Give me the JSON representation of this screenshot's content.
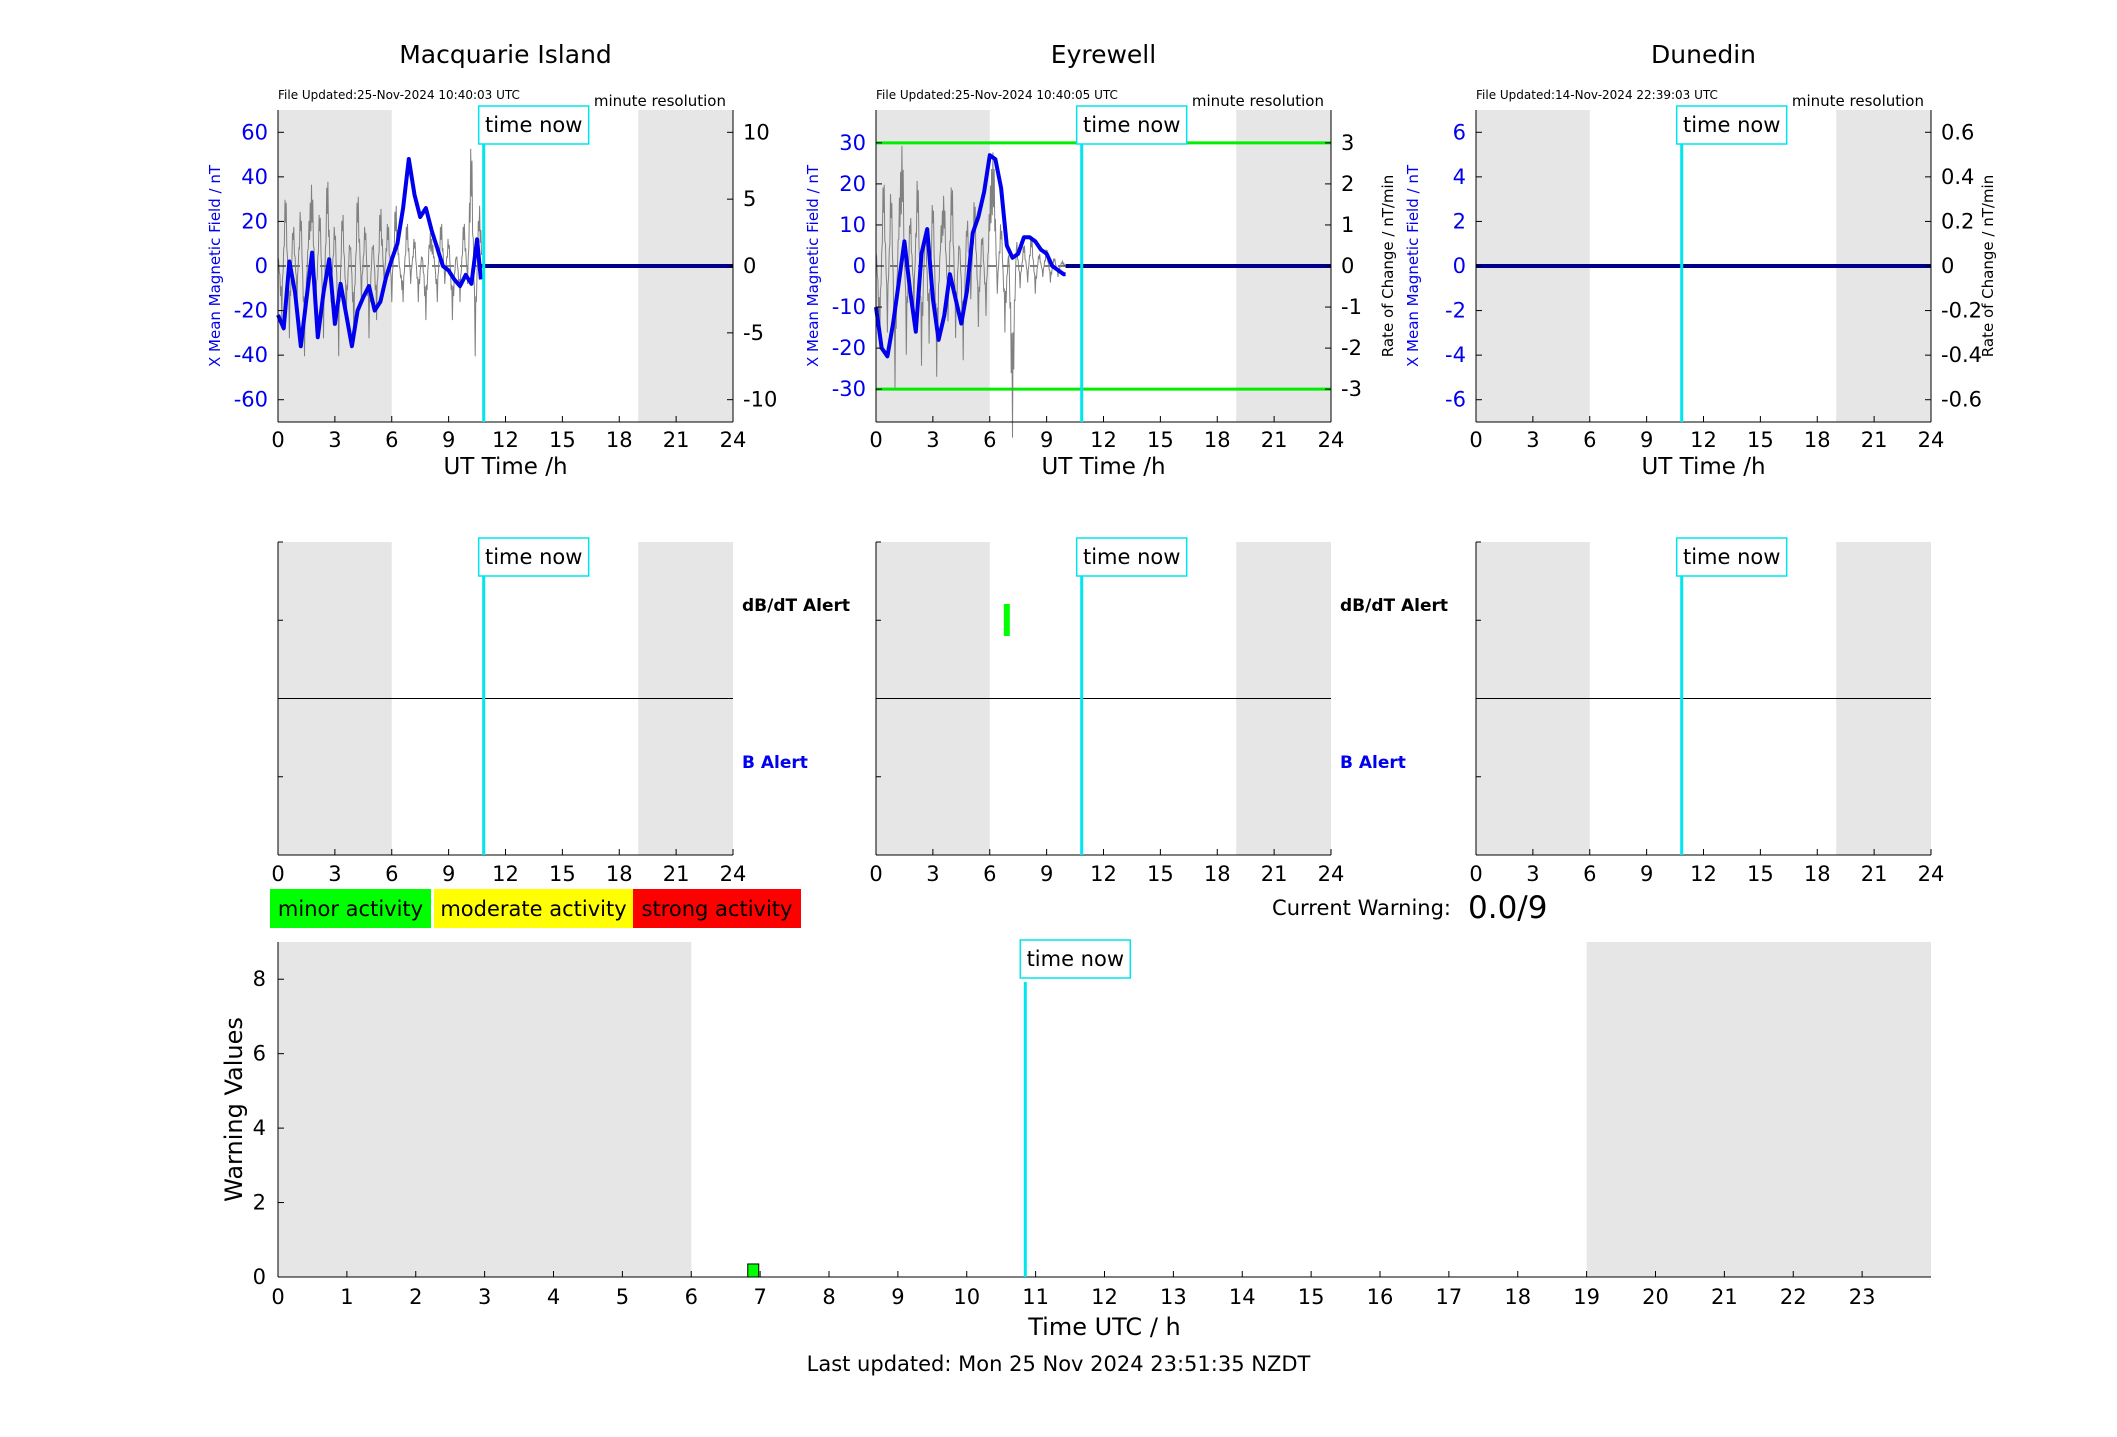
{
  "footer": "Last updated: Mon 25 Nov 2024 23:51:35 NZDT",
  "time_now_label": "time now",
  "time_now_h": 10.85,
  "colors": {
    "night": "#e6e6e6",
    "time_now": "#00e5ee",
    "x_field": "#0000ee",
    "rate": "#808080",
    "threshold": "#00ee00",
    "minor": "#00ff00",
    "moderate": "#ffff00",
    "strong": "#ff0000"
  },
  "stations": [
    {
      "name": "Macquarie Island",
      "file_updated": "File Updated:25-Nov-2024 10:40:03 UTC",
      "resolution": "minute resolution",
      "xlabel": "UT Time /h",
      "y_left_label": "X Mean Magnetic Field / nT",
      "y_right_label": "",
      "ylim_left": [
        -70,
        70
      ],
      "ylim_right": [
        -11.67,
        11.67
      ],
      "yticks_left": [
        -60,
        -40,
        -20,
        0,
        20,
        40,
        60
      ],
      "yticks_left_labels": [
        "-60",
        "-40",
        "-20",
        "0",
        "20",
        "40",
        "60"
      ],
      "yticks_right": [
        -10,
        -5,
        0,
        5,
        10
      ],
      "yticks_right_labels": [
        "-10",
        "-5",
        "0",
        "5",
        "10"
      ],
      "night_ranges": [
        [
          0,
          6
        ],
        [
          19,
          24
        ]
      ],
      "thresholds_left": [],
      "x_field": {
        "t": [
          0,
          0.3,
          0.6,
          0.9,
          1.2,
          1.5,
          1.8,
          2.1,
          2.4,
          2.7,
          3.0,
          3.3,
          3.6,
          3.9,
          4.2,
          4.5,
          4.8,
          5.1,
          5.4,
          5.7,
          6.0,
          6.3,
          6.6,
          6.9,
          7.2,
          7.5,
          7.8,
          8.1,
          8.4,
          8.7,
          9.0,
          9.3,
          9.6,
          9.9,
          10.2,
          10.5,
          10.7
        ],
        "v": [
          -22,
          -28,
          2,
          -12,
          -36,
          -15,
          6,
          -32,
          -12,
          3,
          -26,
          -8,
          -22,
          -36,
          -20,
          -14,
          -9,
          -20,
          -16,
          -5,
          3,
          10,
          26,
          48,
          32,
          22,
          26,
          16,
          8,
          0,
          -2,
          -6,
          -9,
          -4,
          -8,
          12,
          -6
        ]
      },
      "rate": {
        "t": [
          0,
          0.2,
          0.4,
          0.6,
          0.8,
          1.0,
          1.2,
          1.4,
          1.6,
          1.8,
          2.0,
          2.2,
          2.4,
          2.6,
          2.8,
          3.0,
          3.2,
          3.4,
          3.6,
          3.8,
          4.0,
          4.2,
          4.4,
          4.6,
          4.8,
          5.0,
          5.2,
          5.4,
          5.6,
          5.8,
          6.0,
          6.2,
          6.4,
          6.6,
          6.8,
          7.0,
          7.2,
          7.4,
          7.6,
          7.8,
          8.0,
          8.2,
          8.4,
          8.6,
          8.8,
          9.0,
          9.2,
          9.4,
          9.6,
          9.8,
          10.0,
          10.2,
          10.4,
          10.6,
          10.8
        ],
        "v": [
          1,
          -3,
          5,
          -4,
          3,
          -2,
          4,
          -5,
          2,
          5,
          -3,
          4,
          -4,
          6,
          -2,
          3,
          -5,
          4,
          -3,
          2,
          -4,
          5,
          -2,
          3,
          -4,
          2,
          -3,
          4,
          -1,
          3,
          -2,
          4,
          0,
          -2,
          3,
          -1,
          2,
          -2,
          1,
          -3,
          2,
          1,
          -2,
          3,
          -1,
          2,
          -3,
          1,
          -2,
          3,
          -1,
          8,
          -5,
          4,
          0
        ]
      },
      "alerts": []
    },
    {
      "name": "Eyrewell",
      "file_updated": "File Updated:25-Nov-2024 10:40:05 UTC",
      "resolution": "minute resolution",
      "xlabel": "UT Time /h",
      "y_left_label": "X Mean Magnetic Field / nT",
      "y_right_label": "Rate of Change / nT/min",
      "ylim_left": [
        -38,
        38
      ],
      "ylim_right": [
        -3.8,
        3.8
      ],
      "yticks_left": [
        -30,
        -20,
        -10,
        0,
        10,
        20,
        30
      ],
      "yticks_left_labels": [
        "-30",
        "-20",
        "-10",
        "0",
        "10",
        "20",
        "30"
      ],
      "yticks_right": [
        -3,
        -2,
        -1,
        0,
        1,
        2,
        3
      ],
      "yticks_right_labels": [
        "-3",
        "-2",
        "-1",
        "0",
        "1",
        "2",
        "3"
      ],
      "night_ranges": [
        [
          0,
          6
        ],
        [
          19,
          24
        ]
      ],
      "thresholds_left": [
        30,
        -30
      ],
      "x_field": {
        "t": [
          0,
          0.3,
          0.6,
          0.9,
          1.2,
          1.5,
          1.8,
          2.1,
          2.4,
          2.7,
          3.0,
          3.3,
          3.6,
          3.9,
          4.2,
          4.5,
          4.8,
          5.1,
          5.4,
          5.7,
          6.0,
          6.3,
          6.6,
          6.9,
          7.2,
          7.5,
          7.8,
          8.1,
          8.4,
          8.7,
          9.0,
          9.3,
          9.6,
          9.9,
          10.0
        ],
        "v": [
          -10,
          -20,
          -22,
          -14,
          -4,
          6,
          -6,
          -16,
          3,
          9,
          -8,
          -18,
          -12,
          -2,
          -8,
          -14,
          -6,
          8,
          12,
          18,
          27,
          26,
          19,
          5,
          2,
          3,
          7,
          7,
          6,
          4,
          3,
          0,
          -1,
          -2,
          -2
        ]
      },
      "rate": {
        "t": [
          0,
          0.2,
          0.4,
          0.6,
          0.8,
          1.0,
          1.2,
          1.4,
          1.6,
          1.8,
          2.0,
          2.2,
          2.4,
          2.6,
          2.8,
          3.0,
          3.2,
          3.4,
          3.6,
          3.8,
          4.0,
          4.2,
          4.4,
          4.6,
          4.8,
          5.0,
          5.2,
          5.4,
          5.6,
          5.8,
          6.0,
          6.2,
          6.4,
          6.6,
          6.8,
          7.0,
          7.2,
          7.4,
          7.6,
          7.8,
          8.0,
          8.2,
          8.4,
          8.6,
          8.8,
          9.0,
          9.2,
          9.4,
          9.6,
          9.8,
          10.0
        ],
        "v": [
          0.5,
          -1.5,
          2.0,
          -1.2,
          1.8,
          -2.2,
          1.0,
          2.4,
          -1.6,
          1.2,
          -0.8,
          2.0,
          -1.8,
          0.9,
          -1.4,
          1.6,
          -2.0,
          0.6,
          1.4,
          -1.0,
          1.9,
          -1.3,
          0.7,
          -1.7,
          1.1,
          -0.6,
          1.5,
          -1.1,
          0.8,
          -0.9,
          1.3,
          2.2,
          -0.5,
          1.0,
          -1.2,
          0.4,
          -3.1,
          0.6,
          -0.4,
          0.5,
          -0.3,
          0.7,
          -0.5,
          0.3,
          -0.2,
          0.4,
          -0.3,
          0.2,
          -0.2,
          0.1,
          0.0
        ]
      },
      "alerts": [
        {
          "t": 6.9,
          "label": "dB/dT"
        }
      ]
    },
    {
      "name": "Dunedin",
      "file_updated": "File Updated:14-Nov-2024 22:39:03 UTC",
      "resolution": "minute resolution",
      "xlabel": "UT Time /h",
      "y_left_label": "X Mean Magnetic Field / nT",
      "y_right_label": "Rate of Change / nT/min",
      "ylim_left": [
        -7,
        7
      ],
      "ylim_right": [
        -0.7,
        0.7
      ],
      "yticks_left": [
        -6,
        -4,
        -2,
        0,
        2,
        4,
        6
      ],
      "yticks_left_labels": [
        "-6",
        "-4",
        "-2",
        "0",
        "2",
        "4",
        "6"
      ],
      "yticks_right": [
        -0.6,
        -0.4,
        -0.2,
        0,
        0.2,
        0.4,
        0.6
      ],
      "yticks_right_labels": [
        "-0.6",
        "-0.4",
        "-0.2",
        "0",
        "0.2",
        "0.4",
        "0.6"
      ],
      "night_ranges": [
        [
          0,
          6
        ],
        [
          19,
          24
        ]
      ],
      "thresholds_left": [],
      "x_field": {
        "t": [],
        "v": []
      },
      "rate": {
        "t": [],
        "v": []
      },
      "alerts": []
    }
  ],
  "top_xticks": [
    0,
    3,
    6,
    9,
    12,
    15,
    18,
    21,
    24
  ],
  "alerts_labels": {
    "dbdt": "dB/dT Alert",
    "b": "B Alert"
  },
  "legend": {
    "minor": "minor activity",
    "moderate": "moderate activity",
    "strong": "strong activity"
  },
  "current_warning": {
    "label": "Current Warning:",
    "value": "0.0/9"
  },
  "chart_data": {
    "type": "bar",
    "xlabel": "Time UTC / h",
    "ylabel": "Warning Values",
    "xlim": [
      0,
      24
    ],
    "ylim": [
      0,
      9
    ],
    "xticks": [
      0,
      1,
      2,
      3,
      4,
      5,
      6,
      7,
      8,
      9,
      10,
      11,
      12,
      13,
      14,
      15,
      16,
      17,
      18,
      19,
      20,
      21,
      22,
      23
    ],
    "yticks": [
      0,
      2,
      4,
      6,
      8
    ],
    "night_ranges": [
      [
        0,
        6
      ],
      [
        19,
        24
      ]
    ],
    "bars": [
      {
        "t": 6.9,
        "value": 0.35,
        "level": "minor"
      }
    ]
  }
}
